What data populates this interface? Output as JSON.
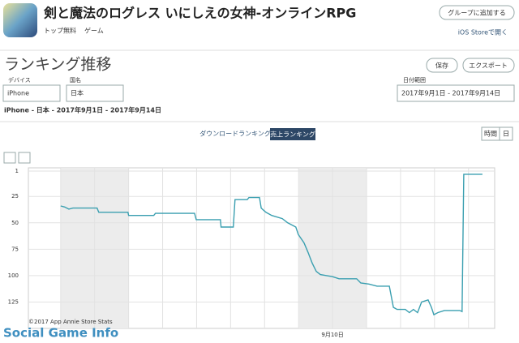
{
  "header": {
    "title": "剣と魔法のログレス いにしえの女神-オンラインRPG",
    "tags": [
      "トップ無料",
      "ゲーム"
    ],
    "add_group": "グループに追加する",
    "open_store": "iOS Storeで開く"
  },
  "section": {
    "title": "ランキング推移",
    "save": "保存",
    "export": "エクスポート"
  },
  "filters": {
    "device_label": "デバイス",
    "device": "iPhone",
    "country_label": "国名",
    "country": "日本",
    "date_label": "日付範囲",
    "date": "2017年9月1日 - 2017年9月14日"
  },
  "summary": "iPhone - 日本 - 2017年9月1日 - 2017年9月14日",
  "tabs": [
    "ダウンロードランキング",
    "売上ランキング"
  ],
  "granularity": [
    "時間",
    "日"
  ],
  "chart_data": {
    "type": "line",
    "color": "#3a9fb0",
    "y_reversed": true,
    "x": [
      2.0,
      2.12,
      2.24,
      2.36,
      3.07,
      3.12,
      3.98,
      4.0,
      4.74,
      4.79,
      5.58,
      5.94,
      5.99,
      6.7,
      6.72,
      7.08,
      7.13,
      7.49,
      7.54,
      7.85,
      7.9,
      8.04,
      8.21,
      8.52,
      8.68,
      8.92,
      8.99,
      9.16,
      9.28,
      9.4,
      9.52,
      9.64,
      10.0,
      10.19,
      10.71,
      10.83,
      11.07,
      11.31,
      11.67,
      11.79,
      11.9,
      12.14,
      12.26,
      12.38,
      12.5,
      12.62,
      12.81,
      12.91,
      12.98,
      13.1,
      13.29,
      13.74,
      13.81,
      13.86,
      14.41
    ],
    "values": [
      34,
      35,
      37,
      36,
      36,
      40,
      40,
      43,
      43,
      41,
      41,
      41,
      47,
      47,
      54,
      54,
      28,
      28,
      26,
      26,
      36,
      40,
      43,
      46,
      50,
      54,
      61,
      69,
      78,
      88,
      96,
      99,
      101,
      103,
      103,
      107,
      108,
      110,
      110,
      130,
      132,
      132,
      135,
      132,
      135,
      125,
      123,
      130,
      137,
      135,
      133,
      133,
      134,
      4,
      4
    ],
    "xlim": [
      1.05,
      14.77
    ],
    "ylim": [
      1,
      150
    ],
    "yticks": [
      1,
      25,
      50,
      75,
      100,
      125
    ],
    "xticks": [
      {
        "value": 2,
        "label": null
      },
      {
        "value": 3,
        "label": null
      },
      {
        "value": 4,
        "label": null
      },
      {
        "value": 5,
        "label": null
      },
      {
        "value": 6,
        "label": null
      },
      {
        "value": 7,
        "label": null
      },
      {
        "value": 8,
        "label": null
      },
      {
        "value": 9,
        "label": null
      },
      {
        "value": 10,
        "label": "9月10日"
      },
      {
        "value": 11,
        "label": null
      },
      {
        "value": 12,
        "label": null
      },
      {
        "value": 13,
        "label": null
      },
      {
        "value": 14,
        "label": null
      }
    ],
    "bands": [
      [
        2,
        4
      ],
      [
        9,
        11
      ]
    ],
    "grid": true,
    "credit": "©2017 App Annie Store Stats"
  },
  "watermark": "Social Game Info"
}
